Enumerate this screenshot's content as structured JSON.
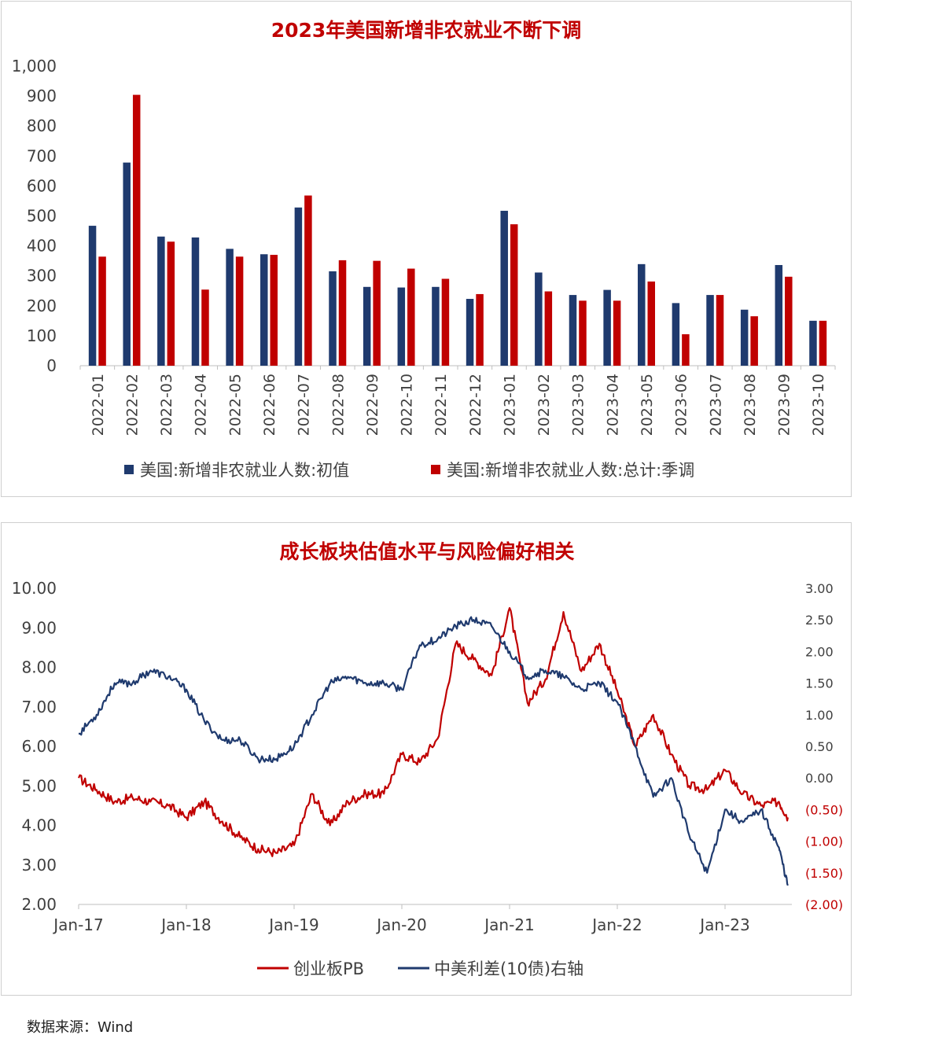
{
  "charts": [
    {
      "type": "bar",
      "title": "2023年美国新增非农就业不断下调",
      "categories": [
        "2022-01",
        "2022-02",
        "2022-03",
        "2022-04",
        "2022-05",
        "2022-06",
        "2022-07",
        "2022-08",
        "2022-09",
        "2022-10",
        "2022-11",
        "2022-12",
        "2023-01",
        "2023-02",
        "2023-03",
        "2023-04",
        "2023-05",
        "2023-06",
        "2023-07",
        "2023-08",
        "2023-09",
        "2023-10"
      ],
      "series": [
        {
          "name": "美国:新增非农就业人数:初值",
          "color": "#1f3a6e",
          "values": [
            467,
            678,
            431,
            428,
            390,
            372,
            528,
            315,
            263,
            261,
            263,
            223,
            517,
            311,
            236,
            253,
            339,
            209,
            236,
            187,
            336,
            150
          ]
        },
        {
          "name": "美国:新增非农就业人数:总计:季调",
          "color": "#c00000",
          "values": [
            364,
            904,
            414,
            254,
            364,
            370,
            568,
            352,
            350,
            324,
            290,
            239,
            472,
            248,
            217,
            217,
            281,
            105,
            236,
            165,
            297,
            150
          ]
        }
      ],
      "yticks": [
        "0",
        "100",
        "200",
        "300",
        "400",
        "500",
        "600",
        "700",
        "800",
        "900",
        "1,000"
      ],
      "ylim": [
        0,
        1000
      ],
      "legend": "bottom"
    },
    {
      "type": "line",
      "title": "成长板块估值水平与风险偏好相关",
      "xticks": [
        "Jan-17",
        "Jan-18",
        "Jan-19",
        "Jan-20",
        "Jan-21",
        "Jan-22",
        "Jan-23"
      ],
      "yticks_left": [
        "2.00",
        "3.00",
        "4.00",
        "5.00",
        "6.00",
        "7.00",
        "8.00",
        "9.00",
        "10.00"
      ],
      "yticks_right": [
        "(2.00)",
        "(1.50)",
        "(1.00)",
        "(0.50)",
        "0.00",
        "0.50",
        "1.00",
        "1.50",
        "2.00",
        "2.50",
        "3.00"
      ],
      "ylim_left": [
        2,
        10
      ],
      "ylim_right": [
        -2,
        3
      ],
      "legend": "bottom",
      "series": [
        {
          "name": "创业板PB",
          "axis": "left",
          "color": "#c00000",
          "x": [
            "2017-01",
            "2017-03",
            "2017-05",
            "2017-07",
            "2017-09",
            "2017-11",
            "2018-01",
            "2018-03",
            "2018-05",
            "2018-07",
            "2018-09",
            "2018-11",
            "2019-01",
            "2019-03",
            "2019-05",
            "2019-07",
            "2019-09",
            "2019-11",
            "2020-01",
            "2020-03",
            "2020-05",
            "2020-07",
            "2020-09",
            "2020-11",
            "2021-01",
            "2021-03",
            "2021-05",
            "2021-07",
            "2021-09",
            "2021-11",
            "2022-01",
            "2022-03",
            "2022-05",
            "2022-07",
            "2022-09",
            "2022-11",
            "2023-01",
            "2023-03",
            "2023-05",
            "2023-07",
            "2023-08"
          ],
          "y": [
            5.2,
            4.9,
            4.6,
            4.7,
            4.6,
            4.5,
            4.2,
            4.6,
            4.1,
            3.7,
            3.4,
            3.3,
            3.5,
            4.8,
            4.0,
            4.6,
            4.8,
            4.8,
            5.8,
            5.6,
            6.2,
            8.6,
            8.2,
            7.8,
            9.5,
            7.1,
            7.7,
            9.4,
            7.9,
            8.6,
            7.4,
            6.0,
            6.8,
            5.8,
            5.0,
            4.9,
            5.4,
            4.8,
            4.5,
            4.6,
            4.2
          ]
        },
        {
          "name": "中美利差(10债)右轴",
          "axis": "right",
          "color": "#1f3a6e",
          "x": [
            "2017-01",
            "2017-03",
            "2017-05",
            "2017-07",
            "2017-09",
            "2017-11",
            "2018-01",
            "2018-03",
            "2018-05",
            "2018-07",
            "2018-09",
            "2018-11",
            "2019-01",
            "2019-03",
            "2019-05",
            "2019-07",
            "2019-09",
            "2019-11",
            "2020-01",
            "2020-03",
            "2020-05",
            "2020-07",
            "2020-09",
            "2020-11",
            "2021-01",
            "2021-03",
            "2021-05",
            "2021-07",
            "2021-09",
            "2021-11",
            "2022-01",
            "2022-03",
            "2022-05",
            "2022-07",
            "2022-09",
            "2022-11",
            "2023-01",
            "2023-03",
            "2023-05",
            "2023-07",
            "2023-08"
          ],
          "y": [
            0.7,
            1.0,
            1.5,
            1.5,
            1.7,
            1.6,
            1.4,
            0.9,
            0.6,
            0.6,
            0.3,
            0.3,
            0.5,
            1.0,
            1.5,
            1.6,
            1.5,
            1.5,
            1.4,
            2.1,
            2.2,
            2.4,
            2.5,
            2.4,
            2.0,
            1.6,
            1.7,
            1.6,
            1.4,
            1.5,
            1.2,
            0.5,
            -0.3,
            0.0,
            -0.9,
            -1.5,
            -0.5,
            -0.7,
            -0.5,
            -1.1,
            -1.7
          ]
        }
      ]
    }
  ],
  "source": "数据来源：Wind"
}
